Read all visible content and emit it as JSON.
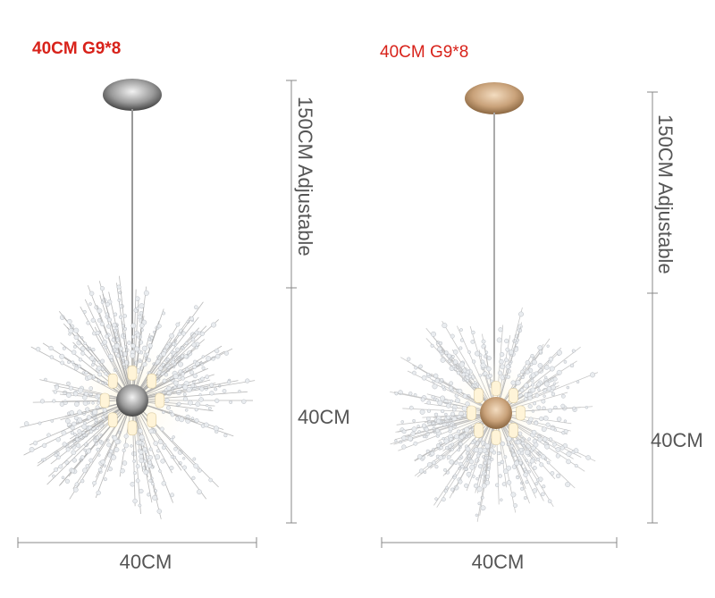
{
  "left": {
    "title": "40CM G9*8",
    "cord_label": "150CM Adjustable",
    "height_label": "40CM",
    "width_label": "40CM"
  },
  "right": {
    "title": "40CM G9*8",
    "cord_label": "150CM Adjustable",
    "height_label": "40CM",
    "width_label": "40CM"
  }
}
